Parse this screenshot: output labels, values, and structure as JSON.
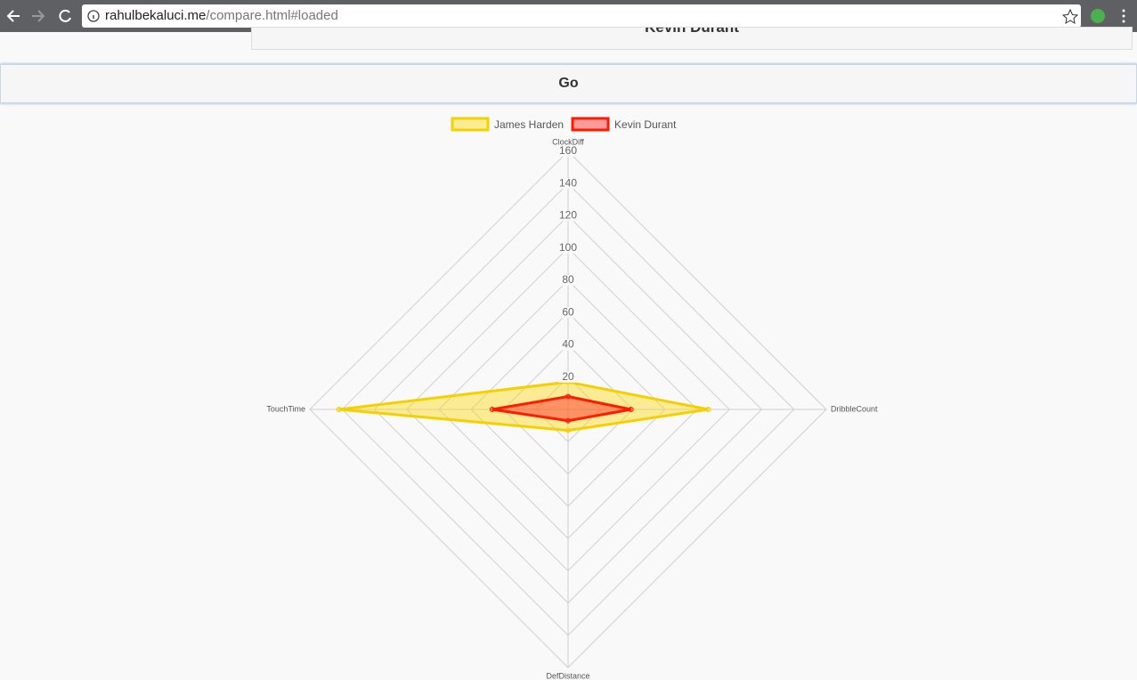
{
  "browser": {
    "url_host": "rahulbekaluci.me",
    "url_path": "/compare.html#loaded"
  },
  "page": {
    "player_select": "Kevin Durant",
    "button": "Go"
  },
  "chart_data": {
    "type": "radar",
    "categories": [
      "ClockDiff",
      "DribbleCount",
      "DefDistance",
      "TouchTime"
    ],
    "series": [
      {
        "name": "James Harden",
        "color": "#f5d000",
        "fill": "rgba(255,215,0,0.4)",
        "values": [
          17,
          87,
          13,
          142
        ]
      },
      {
        "name": "Kevin Durant",
        "color": "#ff1a00",
        "fill": "rgba(255,40,40,0.45)",
        "values": [
          8,
          39,
          7,
          47
        ]
      }
    ],
    "ylim": [
      0,
      160
    ],
    "yticks": [
      20,
      40,
      60,
      80,
      100,
      120,
      140,
      160
    ],
    "grid": true,
    "legend": "top"
  }
}
